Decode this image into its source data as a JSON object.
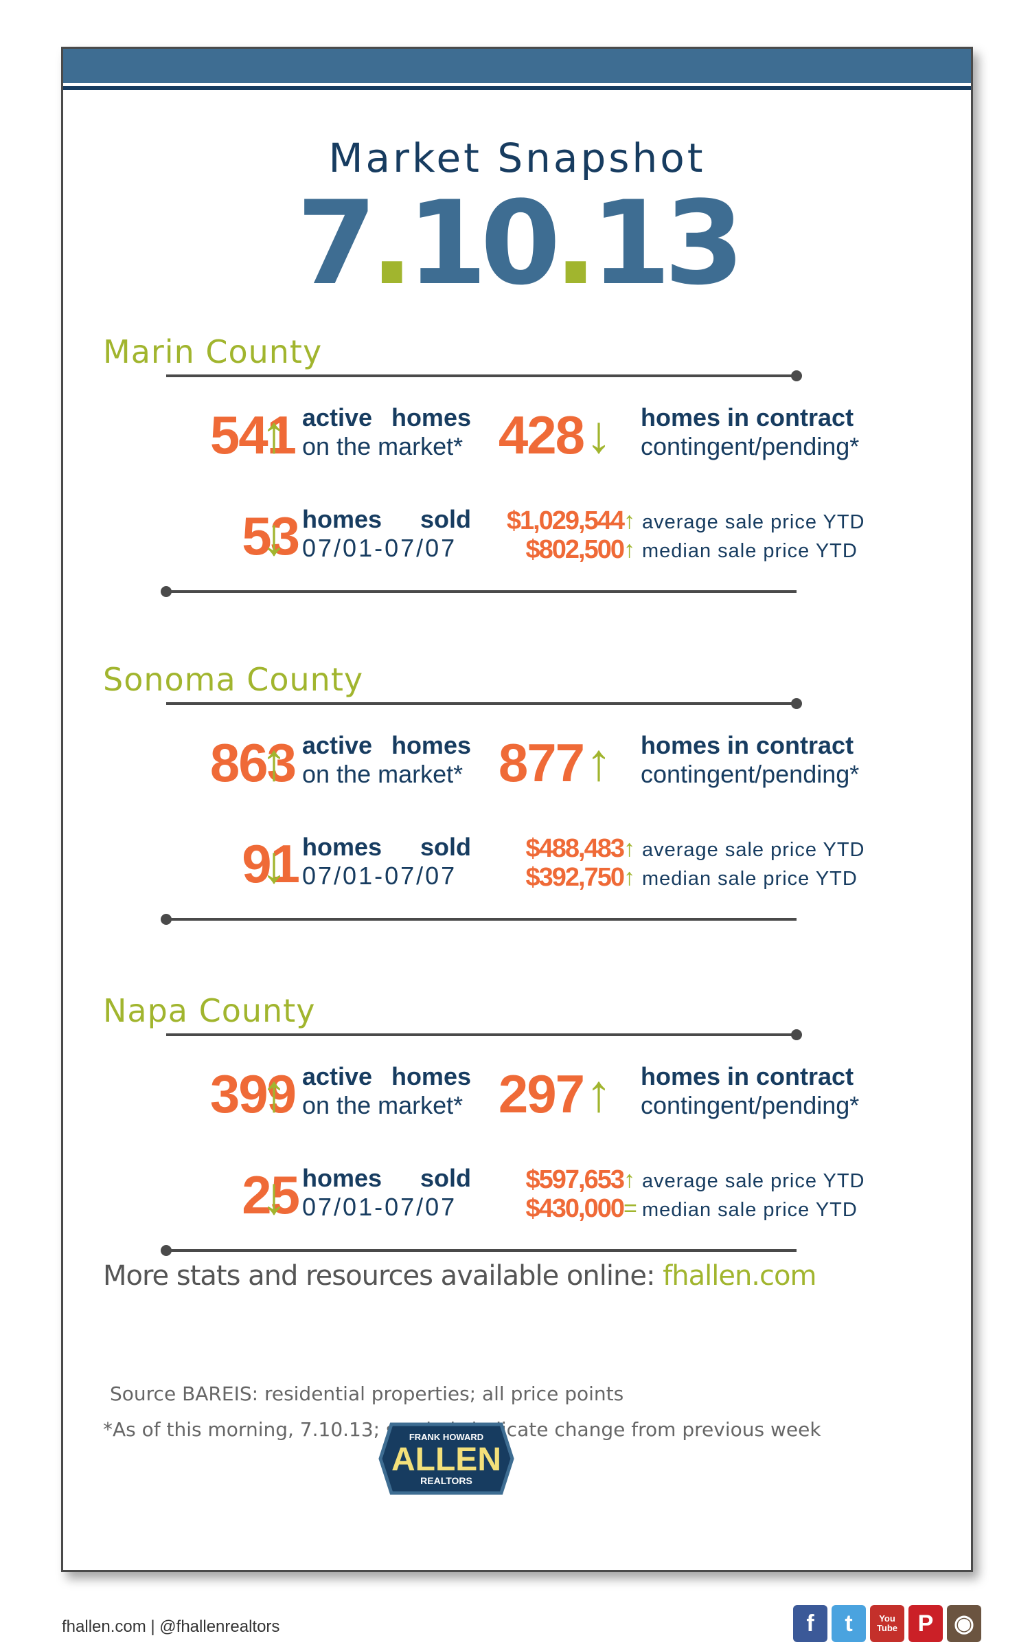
{
  "header": {
    "title": "Market Snapshot",
    "date_parts": [
      "7",
      ".",
      "10",
      ".",
      "13"
    ]
  },
  "labels": {
    "active_1": "active",
    "active_2": "homes",
    "active_sub": "on the market*",
    "contract": "homes in contract",
    "contract_sub": "contingent/pending*",
    "sold_1": "homes",
    "sold_2": "sold",
    "sold_sub": "07/01-07/07",
    "avg": "average sale price YTD",
    "median": "median sale price YTD"
  },
  "counties": [
    {
      "name": "Marin County",
      "active": "541",
      "active_trend": "↑",
      "contract": "428",
      "contract_trend": "↓",
      "sold": "53",
      "sold_trend": "↓",
      "avg_price": "$1,029,544",
      "avg_trend": "↑",
      "median_price": "$802,500",
      "median_trend": "↑"
    },
    {
      "name": "Sonoma County",
      "active": "863",
      "active_trend": "↑",
      "contract": "877",
      "contract_trend": "↑",
      "sold": "91",
      "sold_trend": "↓",
      "avg_price": "$488,483",
      "avg_trend": "↑",
      "median_price": "$392,750",
      "median_trend": "↑"
    },
    {
      "name": "Napa County",
      "active": "399",
      "active_trend": "↑",
      "contract": "297",
      "contract_trend": "↑",
      "sold": "25",
      "sold_trend": "↓",
      "avg_price": "$597,653",
      "avg_trend": "↑",
      "median_price": "$430,000",
      "median_trend": "="
    }
  ],
  "more": {
    "text": "More stats and resources available online: ",
    "link": "fhallen.com"
  },
  "source_note": "Source BAREIS: residential properties; all price points",
  "asof_note": "*As of this morning, 7.10.13; symbols indicate change from previous week",
  "logo": {
    "top": "FRANK HOWARD",
    "main": "ALLEN",
    "bottom": "REALTORS"
  },
  "footer": {
    "text": "fhallen.com | @fhallenrealtors"
  },
  "social": [
    {
      "name": "facebook-icon",
      "glyph": "f",
      "color": "#3b5998"
    },
    {
      "name": "twitter-icon",
      "glyph": "t",
      "color": "#4aa3df"
    },
    {
      "name": "youtube-icon",
      "glyph": "You Tube",
      "color": "#c4302b"
    },
    {
      "name": "pinterest-icon",
      "glyph": "P",
      "color": "#cb2027"
    },
    {
      "name": "instagram-icon",
      "glyph": "◉",
      "color": "#6b5440"
    }
  ],
  "colors": {
    "navy": "#173c60",
    "blue": "#3e6d92",
    "green": "#a1b52e",
    "orange": "#ef6a37"
  }
}
